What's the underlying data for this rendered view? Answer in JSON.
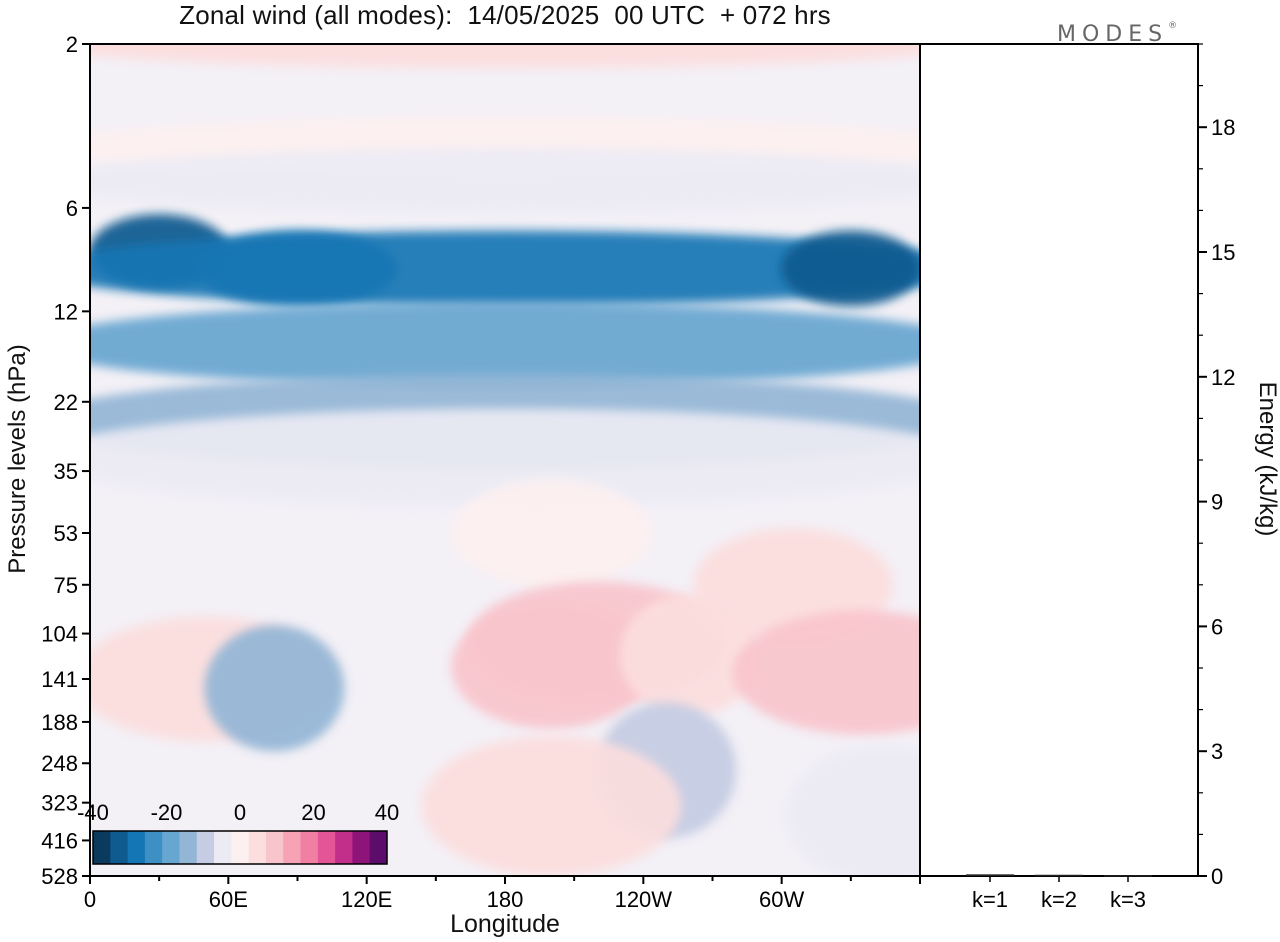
{
  "title": "Zonal wind (all modes):  14/05/2025  00 UTC  + 072 hrs",
  "logo": "MODES",
  "logo_mark": "®",
  "colors": {
    "scale": [
      "#0b3a5f",
      "#0f5a8f",
      "#1476b4",
      "#3d8fc4",
      "#67a6d0",
      "#93b6d6",
      "#c5cce3",
      "#ecebf4",
      "#fdf0f0",
      "#fcdede",
      "#f9c5cc",
      "#f6a3b6",
      "#f07fa3",
      "#e35596",
      "#c12f8a",
      "#8e1479",
      "#5c0d6c"
    ],
    "background_field": "#f3f0f6"
  },
  "chart_data": [
    {
      "type": "heatmap",
      "title": "Zonal wind (all modes):  14/05/2025  00 UTC  + 072 hrs",
      "xlabel": "Longitude",
      "ylabel": "Pressure levels (hPa)",
      "x_ticks": [
        "0",
        "60E",
        "120E",
        "180",
        "120W",
        "60W"
      ],
      "x_range_deg": [
        0,
        360
      ],
      "y_ticks": [
        2,
        6,
        12,
        22,
        35,
        53,
        75,
        104,
        141,
        188,
        248,
        323,
        416,
        528
      ],
      "y_direction": "top-to-bottom",
      "colorbar": {
        "labels": [
          "-40",
          "-20",
          "0",
          "20",
          "40"
        ],
        "range": [
          -40,
          40
        ],
        "levels": [
          -40,
          -35,
          -30,
          -25,
          -20,
          -15,
          -10,
          -5,
          0,
          5,
          10,
          15,
          20,
          25,
          30,
          35,
          40
        ],
        "placement": "bottom-left"
      },
      "features": [
        {
          "lon": 180,
          "level": 2,
          "value": 8
        },
        {
          "lon": 180,
          "level": 4,
          "value": 2
        },
        {
          "lon": 180,
          "level": 5,
          "value": -5
        },
        {
          "lon": 30,
          "level": 8,
          "value": -32
        },
        {
          "lon": 90,
          "level": 9,
          "value": -30
        },
        {
          "lon": 180,
          "level": 9,
          "value": -28
        },
        {
          "lon": 330,
          "level": 9,
          "value": -33
        },
        {
          "lon": 180,
          "level": 15,
          "value": -20
        },
        {
          "lon": 180,
          "level": 25,
          "value": -12
        },
        {
          "lon": 180,
          "level": 32,
          "value": -4
        },
        {
          "lon": 200,
          "level": 53,
          "value": 3
        },
        {
          "lon": 50,
          "level": 141,
          "value": 9
        },
        {
          "lon": 80,
          "level": 150,
          "value": -12
        },
        {
          "lon": 200,
          "level": 130,
          "value": 14
        },
        {
          "lon": 220,
          "level": 110,
          "value": 12
        },
        {
          "lon": 260,
          "level": 120,
          "value": 5
        },
        {
          "lon": 305,
          "level": 75,
          "value": 8
        },
        {
          "lon": 335,
          "level": 135,
          "value": 12
        },
        {
          "lon": 250,
          "level": 260,
          "value": -6
        },
        {
          "lon": 345,
          "level": 350,
          "value": -4
        },
        {
          "lon": 200,
          "level": 330,
          "value": 6
        }
      ]
    },
    {
      "type": "bar",
      "ylabel": "Energy (kJ/kg)",
      "categories": [
        "k=1",
        "k=2",
        "k=3"
      ],
      "values": [
        0.04,
        0.03,
        0.02
      ],
      "y_ticks": [
        0,
        3,
        6,
        9,
        12,
        15,
        18
      ],
      "ylim": [
        0,
        20
      ]
    }
  ]
}
